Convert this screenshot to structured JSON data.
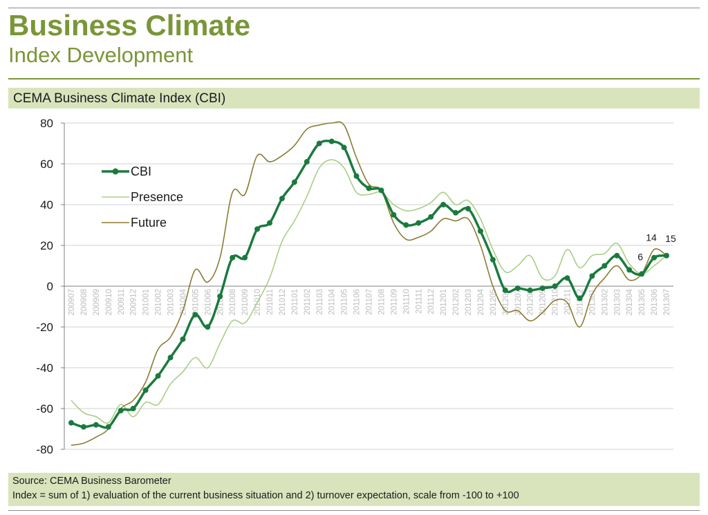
{
  "page": {
    "title": "Business Climate",
    "subtitle": "Index Development",
    "chart_header": "CEMA Business Climate Index (CBI)",
    "source": "Source: CEMA Business Barometer",
    "note": "Index = sum of 1) evaluation of the current business situation and 2) turnover expectation, scale from -100 to +100"
  },
  "colors": {
    "accent": "#7a9637",
    "panel": "#d9e4bd",
    "cbi": "#1a7a3e",
    "presence": "#a8cf85",
    "future": "#8b7a32"
  },
  "chart_data": {
    "type": "line",
    "title": "",
    "ylim": [
      -80,
      80
    ],
    "yticks": [
      80,
      60,
      40,
      20,
      0,
      -20,
      -40,
      -60,
      -80
    ],
    "grid": true,
    "legend_position": "left",
    "categories": [
      "200907",
      "200908",
      "200909",
      "200910",
      "200911",
      "200912",
      "201001",
      "201002",
      "201003",
      "201004",
      "201005",
      "201006",
      "201007",
      "201008",
      "201009",
      "201010",
      "201011",
      "201012",
      "201101",
      "201102",
      "201103",
      "201104",
      "201105",
      "201106",
      "201107",
      "201108",
      "201109",
      "201110",
      "201111",
      "201112",
      "201201",
      "201202",
      "201203",
      "201204",
      "201205",
      "201206",
      "201207",
      "201208",
      "201209",
      "201210",
      "201211",
      "201212",
      "201301",
      "201302",
      "201303",
      "201304",
      "201305",
      "201306",
      "201307"
    ],
    "series": [
      {
        "name": "CBI",
        "values": [
          -67,
          -69,
          -68,
          -69,
          -61,
          -60,
          -51,
          -44,
          -35,
          -26,
          -14,
          -20,
          -5,
          14,
          14,
          28,
          31,
          43,
          51,
          61,
          70,
          71,
          68,
          54,
          48,
          47,
          35,
          30,
          31,
          34,
          40,
          36,
          38,
          27,
          13,
          -2,
          -1,
          -2,
          -1,
          0,
          4,
          -6,
          5,
          10,
          15,
          8,
          6,
          14,
          15
        ]
      },
      {
        "name": "Presence",
        "values": [
          -56,
          -62,
          -64,
          -67,
          -58,
          -64,
          -57,
          -58,
          -48,
          -42,
          -35,
          -40,
          -28,
          -17,
          -18,
          -8,
          4,
          22,
          32,
          44,
          58,
          62,
          58,
          46,
          45,
          46,
          40,
          37,
          38,
          41,
          46,
          40,
          42,
          33,
          18,
          7,
          10,
          15,
          4,
          5,
          18,
          9,
          15,
          16,
          21,
          11,
          6,
          10,
          15
        ]
      },
      {
        "name": "Future",
        "values": [
          -78,
          -77,
          -74,
          -70,
          -60,
          -56,
          -47,
          -31,
          -25,
          -12,
          8,
          2,
          14,
          46,
          45,
          64,
          61,
          64,
          69,
          77,
          79,
          80,
          79,
          63,
          50,
          47,
          31,
          23,
          24,
          27,
          33,
          32,
          33,
          20,
          0,
          -12,
          -12,
          -17,
          -13,
          -7,
          -8,
          -20,
          -4,
          4,
          10,
          3,
          6,
          18,
          15
        ]
      }
    ],
    "data_labels": [
      {
        "series": "CBI",
        "category": "201305",
        "text": "6"
      },
      {
        "series": "CBI",
        "category": "201306",
        "text": "14"
      },
      {
        "series": "CBI",
        "category": "201307",
        "text": "15"
      }
    ]
  }
}
